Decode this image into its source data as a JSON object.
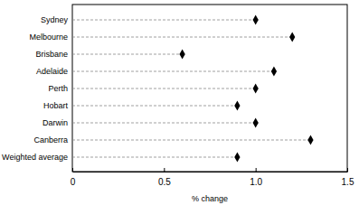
{
  "chart_data": {
    "type": "dot",
    "orientation": "horizontal",
    "categories": [
      "Sydney",
      "Melbourne",
      "Brisbane",
      "Adelaide",
      "Perth",
      "Hobart",
      "Darwin",
      "Canberra",
      "Weighted average"
    ],
    "values": [
      1.0,
      1.2,
      0.6,
      1.1,
      1.0,
      0.9,
      1.0,
      1.3,
      0.9
    ],
    "color": "#000000",
    "marker": "diamond",
    "line_style": "dashed",
    "x_label": "% change",
    "xlim": [
      0,
      1.5
    ],
    "xticks": [
      0,
      0.5,
      {
        "value": 1,
        "label": "1.0"
      },
      1.5
    ]
  }
}
